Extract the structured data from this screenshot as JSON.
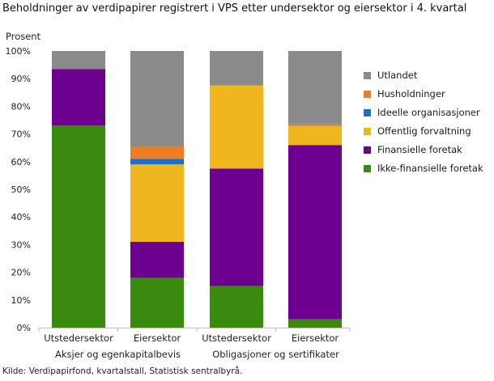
{
  "chart_data": {
    "type": "bar",
    "stacked": true,
    "title": "Beholdninger av verdipapirer registrert i VPS etter undersektor og eiersektor i 4. kvartal",
    "ylabel": "Prosent",
    "ylim": [
      0,
      100
    ],
    "yticks": [
      "0%",
      "10%",
      "20%",
      "30%",
      "40%",
      "50%",
      "60%",
      "70%",
      "80%",
      "90%",
      "100%"
    ],
    "categories": [
      "Utstedersektor",
      "Eiersektor",
      "Utstedersektor",
      "Eiersektor"
    ],
    "groups": [
      "Aksjer og egenkapitalbevis",
      "Obligasjoner og sertifikater"
    ],
    "legend_position": "right",
    "grid": false,
    "series": [
      {
        "name": "Ikke-finansielle foretak",
        "color": "#3a8a10",
        "values": [
          73,
          18,
          15,
          3
        ]
      },
      {
        "name": "Finansielle foretak",
        "color": "#6e0090",
        "values": [
          20.5,
          13,
          42.5,
          63
        ]
      },
      {
        "name": "Offentlig forvaltning",
        "color": "#f0b61e",
        "values": [
          0,
          28,
          30,
          7
        ]
      },
      {
        "name": "Ideelle organisasjoner",
        "color": "#1a6fd0",
        "values": [
          0,
          2,
          0,
          0.2
        ]
      },
      {
        "name": "Husholdninger",
        "color": "#ef7d23",
        "values": [
          0,
          4.5,
          0,
          0.5
        ]
      },
      {
        "name": "Utlandet",
        "color": "#8a8a8a",
        "values": [
          6.5,
          34.5,
          12.5,
          26.3
        ]
      }
    ]
  },
  "source": "Kilde: Verdipapirfond, kvartalstall, Statistisk sentralbyrå."
}
